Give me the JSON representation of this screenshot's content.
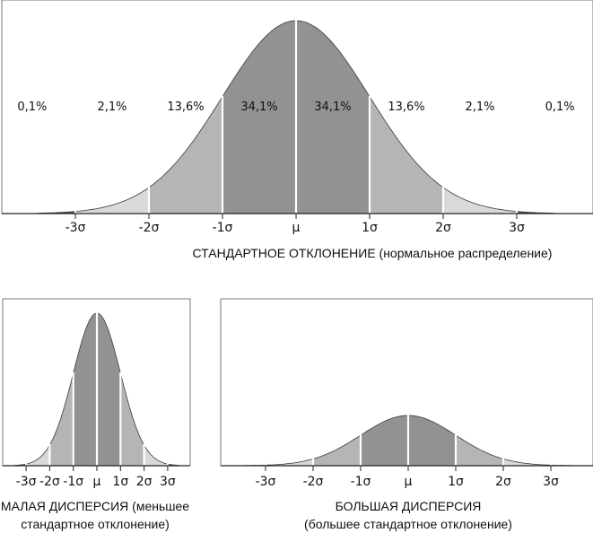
{
  "colors": {
    "core": "#929292",
    "inner": "#b5b5b5",
    "outer": "#d9d9d9",
    "tail": "#555555",
    "outline": "#3a3a3a"
  },
  "chart_data": [
    {
      "type": "area",
      "title": "СТАНДАРТНОЕ ОТКЛОНЕНИЕ (нормальное распределение)",
      "tick_labels": [
        "-3σ",
        "-2σ",
        "-1σ",
        "μ",
        "1σ",
        "2σ",
        "3σ"
      ],
      "segment_percentages": [
        "0,1%",
        "2,1%",
        "13,6%",
        "34,1%",
        "34,1%",
        "13,6%",
        "2,1%",
        "0,1%"
      ],
      "sigma": 1
    },
    {
      "type": "area",
      "title_lines": [
        "МАЛАЯ ДИСПЕРСИЯ (меньшее",
        "стандартное отклонение)"
      ],
      "tick_labels": [
        "-3σ",
        "-2σ",
        "-1σ",
        "μ",
        "1σ",
        "2σ",
        "3σ"
      ],
      "sigma": 0.32
    },
    {
      "type": "area",
      "title_lines": [
        "БОЛЬШАЯ ДИСПЕРСИЯ",
        "(большее стандартное отклонение)"
      ],
      "tick_labels": [
        "-3σ",
        "-2σ",
        "-1σ",
        "μ",
        "1σ",
        "2σ",
        "3σ"
      ],
      "sigma": 1.55
    }
  ]
}
